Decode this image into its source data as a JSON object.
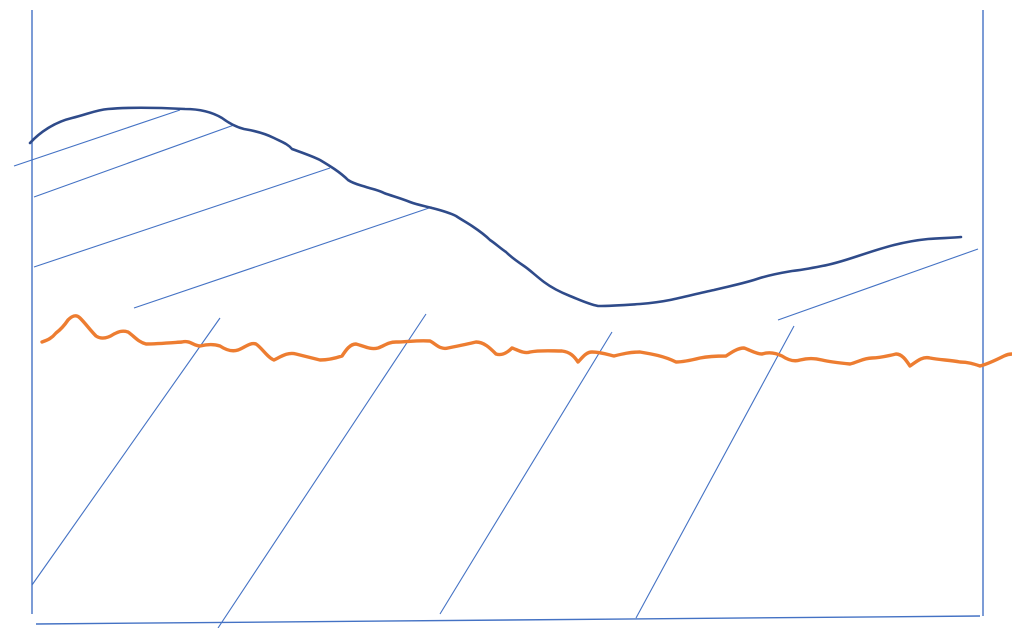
{
  "colors": {
    "frame": "#4472c4",
    "hatch": "#4472c4",
    "upper_curve": "#2f4b8a",
    "lower_curve": "#ed7d31"
  },
  "diagram": {
    "elements": [
      "left-boundary-line",
      "right-boundary-line",
      "bottom-boundary-line",
      "upper-wavy-boundary",
      "lower-wavy-boundary",
      "upper-region-hatching",
      "lower-region-hatching"
    ]
  }
}
